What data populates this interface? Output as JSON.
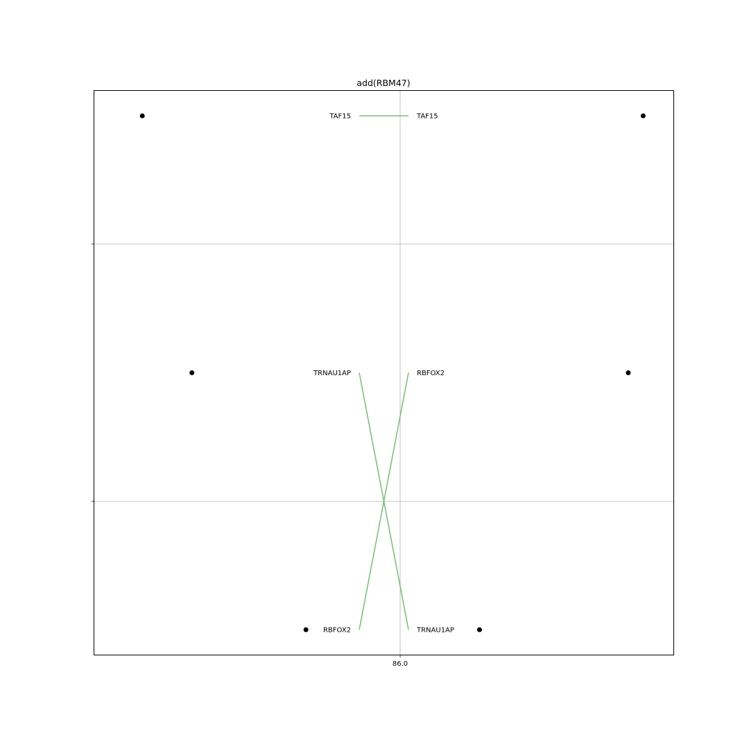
{
  "chart_data": {
    "type": "bump",
    "title": "add(RBM47)",
    "xlabel": "",
    "ylabel": "",
    "grid": true,
    "x_center_tick": "86.0",
    "colors": {
      "connector": "#77bb77",
      "marker": "#000000",
      "grid": "#b0b0b0",
      "axes": "#000000"
    },
    "left_column": {
      "entries": [
        {
          "label": "TAF15",
          "rank": 1,
          "marker_x": 83.4
        },
        {
          "label": "TRNAU1AP",
          "rank": 2,
          "marker_x": 83.9
        },
        {
          "label": "RBFOX2",
          "rank": 3,
          "marker_x": 85.05
        }
      ]
    },
    "right_column": {
      "entries": [
        {
          "label": "TAF15",
          "rank": 1,
          "marker_x": 88.45
        },
        {
          "label": "RBFOX2",
          "rank": 2,
          "marker_x": 88.3
        },
        {
          "label": "TRNAU1AP",
          "rank": 3,
          "marker_x": 86.8
        }
      ]
    }
  }
}
